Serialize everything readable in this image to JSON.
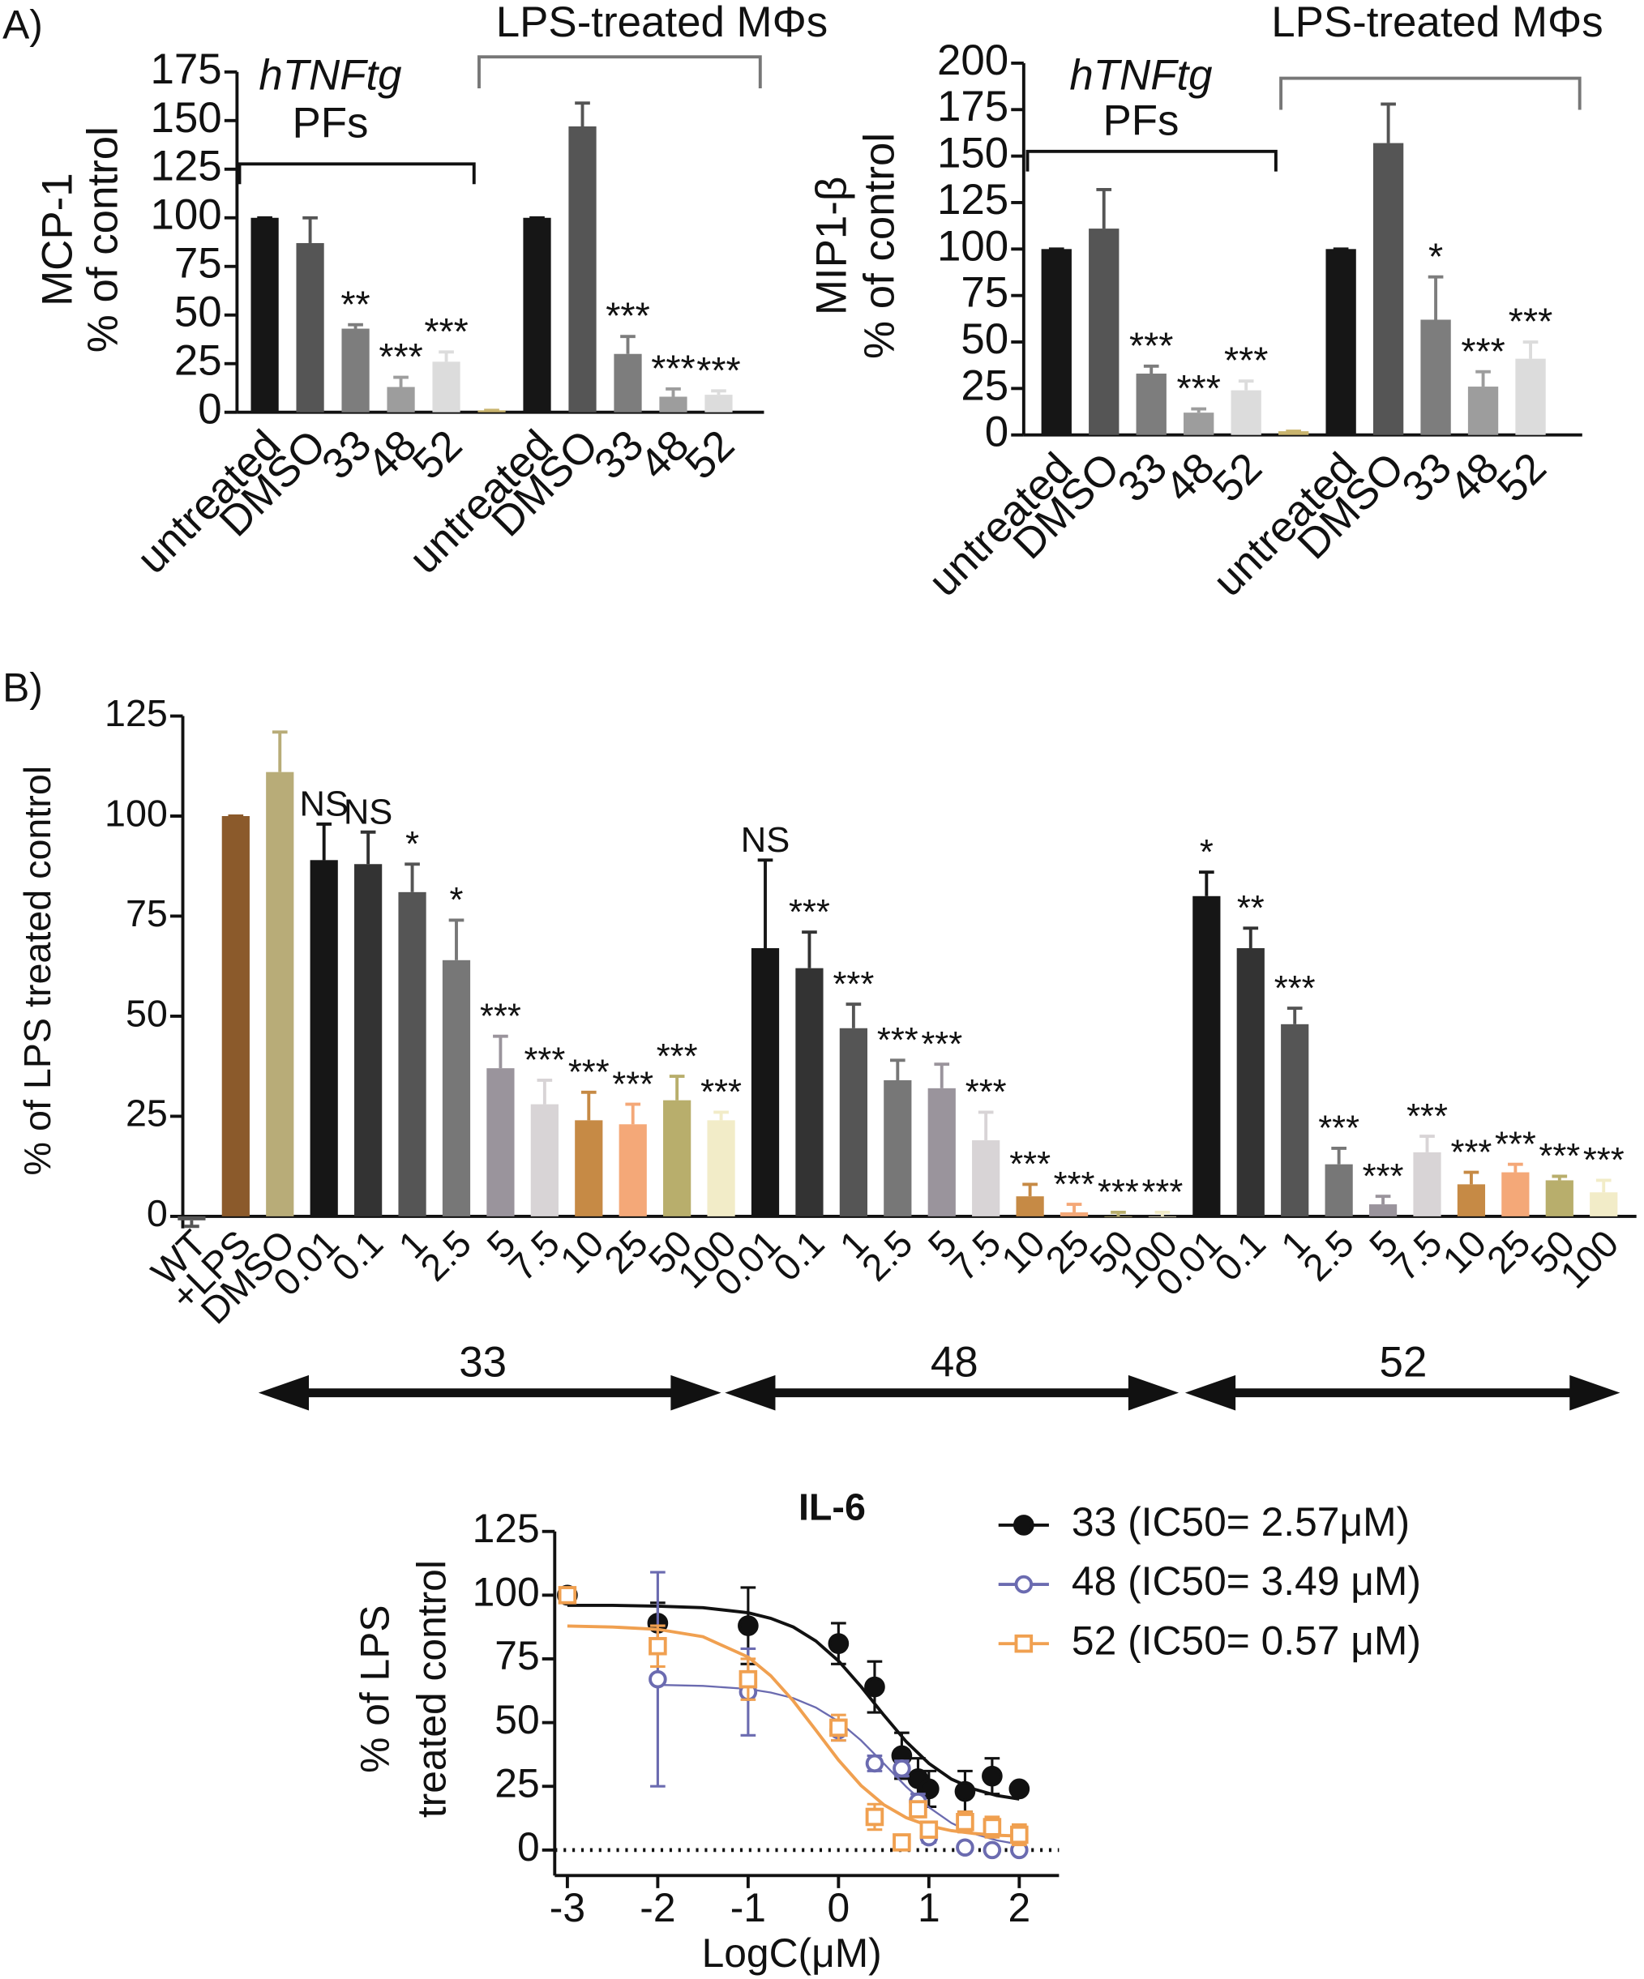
{
  "labels": [
    "A)",
    "B)"
  ],
  "chart_data": [
    {
      "type": "bar",
      "ylabel": [
        "MCP-1",
        "% of control"
      ],
      "categories": [
        "untreated",
        "DMSO",
        "33",
        "48",
        "52",
        null,
        "untreated",
        "DMSO",
        "33",
        "48",
        "52"
      ],
      "values": [
        100,
        87,
        43,
        13,
        26,
        1,
        100,
        147,
        30,
        8,
        9
      ],
      "errors": [
        0,
        13,
        2,
        5,
        5,
        0,
        0,
        12,
        9,
        4,
        2
      ],
      "annotations": [
        null,
        null,
        "**",
        "***",
        "***",
        null,
        null,
        null,
        "***",
        "***",
        "***"
      ],
      "colors": [
        "#161616",
        "#555555",
        "#7d7d7d",
        "#9d9d9d",
        "#dcdcdc",
        "#c9b46e",
        "#161616",
        "#555555",
        "#7d7d7d",
        "#9d9d9d",
        "#dcdcdc"
      ],
      "groups": [
        {
          "label": [
            "hTNFtg",
            "PFs"
          ]
        },
        {
          "label": "LPS-treated MΦs"
        }
      ],
      "ylim": [
        0,
        175
      ],
      "yticks": [
        0,
        25,
        50,
        75,
        100,
        125,
        150,
        175
      ]
    },
    {
      "type": "bar",
      "ylabel": [
        "MIP1-β",
        "% of control"
      ],
      "categories": [
        "untreated",
        "DMSO",
        "33",
        "48",
        "52",
        null,
        "untreated",
        "DMSO",
        "33",
        "48",
        "52"
      ],
      "values": [
        100,
        111,
        33,
        12,
        24,
        2,
        100,
        157,
        62,
        26,
        41
      ],
      "errors": [
        0,
        21,
        4,
        2,
        5,
        0,
        0,
        21,
        23,
        8,
        9
      ],
      "annotations": [
        null,
        null,
        "***",
        "***",
        "***",
        null,
        null,
        null,
        "*",
        "***",
        "***"
      ],
      "colors": [
        "#161616",
        "#555555",
        "#7d7d7d",
        "#9d9d9d",
        "#dcdcdc",
        "#c9b46e",
        "#161616",
        "#555555",
        "#7d7d7d",
        "#9d9d9d",
        "#dcdcdc"
      ],
      "groups": [
        {
          "label": [
            "hTNFtg",
            "PFs"
          ]
        },
        {
          "label": "LPS-treated MΦs"
        }
      ],
      "ylim": [
        0,
        200
      ],
      "yticks": [
        0,
        25,
        50,
        75,
        100,
        125,
        150,
        175,
        200
      ]
    },
    {
      "type": "bar",
      "ylabel": [
        "% of LPS treated control"
      ],
      "categories": [
        "WT",
        "+LPS",
        "DMSO",
        "0.01",
        "0.1",
        "1",
        "2.5",
        "5",
        "7.5",
        "10",
        "25",
        "50",
        "100",
        "0.01",
        "0.1",
        "1",
        "2.5",
        "5",
        "7.5",
        "10",
        "25",
        "50",
        "100",
        "0.01",
        "0.1",
        "1",
        "2.5",
        "5",
        "7.5",
        "10",
        "25",
        "50",
        "100"
      ],
      "values": [
        -1,
        100,
        111,
        89,
        88,
        81,
        64,
        37,
        28,
        24,
        23,
        29,
        24,
        67,
        62,
        47,
        34,
        32,
        19,
        5,
        1,
        0,
        0,
        80,
        67,
        48,
        13,
        3,
        16,
        8,
        11,
        9,
        6
      ],
      "errors": [
        1.5,
        0,
        10,
        9,
        8,
        7,
        10,
        8,
        6,
        7,
        5,
        6,
        2,
        22,
        9,
        6,
        5,
        6,
        7,
        3,
        2,
        1,
        1,
        6,
        5,
        4,
        4,
        2,
        4,
        3,
        2,
        1,
        3
      ],
      "annotations": [
        null,
        null,
        null,
        "NS",
        "NS",
        "*",
        "*",
        "***",
        "***",
        "***",
        "***",
        "***",
        "***",
        "NS",
        "***",
        "***",
        "***",
        "***",
        "***",
        "***",
        "***",
        "***",
        "***",
        "*",
        "**",
        "***",
        "***",
        "***",
        "***",
        "***",
        "***",
        "***",
        "***"
      ],
      "colors": [
        "#555555",
        "#8b5a2b",
        "#b8ac78",
        "#161616",
        "#333333",
        "#555555",
        "#777777",
        "#9a949c",
        "#d8d4d6",
        "#c68a45",
        "#f4a878",
        "#b8ae6c",
        "#f2ecc8",
        "#161616",
        "#333333",
        "#555555",
        "#777777",
        "#9a949c",
        "#d8d4d6",
        "#c68a45",
        "#f4a878",
        "#b8ae6c",
        "#f2ecc8",
        "#161616",
        "#333333",
        "#555555",
        "#777777",
        "#9a949c",
        "#d8d4d6",
        "#c68a45",
        "#f4a878",
        "#b8ae6c",
        "#f2ecc8"
      ],
      "groups": [
        {
          "label": "33"
        },
        {
          "label": "48"
        },
        {
          "label": "52"
        }
      ],
      "ylim": [
        -3,
        125
      ],
      "yticks": [
        0,
        25,
        50,
        75,
        100,
        125
      ]
    },
    {
      "type": "line",
      "title": "IL-6",
      "xlabel": "LogC(μM)",
      "ylabel": [
        "% of LPS",
        "treated control"
      ],
      "x": [
        -3,
        -2,
        -1,
        0,
        0.4,
        0.7,
        0.88,
        1,
        1.4,
        1.7,
        2
      ],
      "fit_x": [
        -3,
        -2.5,
        -2,
        -1.5,
        -1,
        -0.75,
        -0.5,
        -0.25,
        0,
        0.25,
        0.5,
        0.75,
        1,
        1.25,
        1.5,
        1.75,
        2
      ],
      "series": [
        {
          "name": "33 (IC50= 2.57μM)",
          "color": "#111111",
          "marker": "circle",
          "filled": true,
          "values": [
            100,
            89,
            88,
            81,
            64,
            37,
            28,
            24,
            23,
            29,
            24
          ],
          "errors": [
            0,
            8,
            15,
            8,
            10,
            9,
            8,
            7,
            8,
            7,
            0
          ],
          "fit": [
            96,
            96,
            95.7,
            95.1,
            93.1,
            90.9,
            87.5,
            82,
            74.2,
            64.1,
            53,
            42.5,
            34,
            27.8,
            23.9,
            21.4,
            20
          ]
        },
        {
          "name": "48 (IC50= 3.49 μM)",
          "color": "#6b6bb0",
          "marker": "circle",
          "filled": false,
          "values": [
            null,
            67,
            62,
            47,
            34,
            32,
            19,
            5,
            1,
            0,
            0
          ],
          "errors": [
            null,
            42,
            17,
            4,
            3,
            3,
            3,
            2,
            1,
            0.5,
            0.5
          ],
          "fit": [
            null,
            null,
            64.8,
            64.4,
            63.2,
            61.8,
            59.6,
            55.9,
            50.5,
            43,
            34,
            24.8,
            16.8,
            10.6,
            6.4,
            3.8,
            2.2
          ]
        },
        {
          "name": "52 (IC50= 0.57 μM)",
          "color": "#f0a050",
          "marker": "square",
          "filled": false,
          "values": [
            100,
            80,
            67,
            48,
            13,
            3,
            16,
            8,
            11,
            9,
            6
          ],
          "errors": [
            2,
            8,
            8,
            5,
            5,
            2,
            3,
            2,
            4,
            4,
            4
          ],
          "fit": [
            87.9,
            87.5,
            86.6,
            83.7,
            75.7,
            68.4,
            58.5,
            47,
            35.3,
            25.3,
            17.8,
            12.7,
            9.5,
            7.6,
            6.5,
            5.8,
            5.5
          ]
        }
      ],
      "xlim": [
        -3.14,
        2.44
      ],
      "xticks": [
        -3,
        -2,
        -1,
        0,
        1,
        2
      ],
      "ylim": [
        -10,
        125
      ],
      "yticks": [
        0,
        25,
        50,
        75,
        100,
        125
      ]
    }
  ]
}
